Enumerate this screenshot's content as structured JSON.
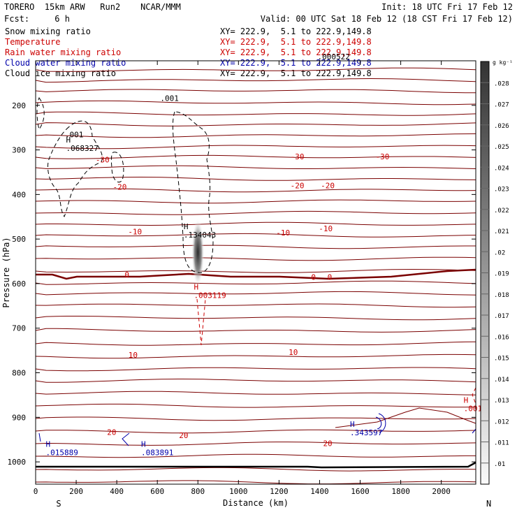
{
  "header": {
    "model": "TORERO  15km ARW   Run2    NCAR/MMM",
    "init": "Init: 18 UTC Fri 17 Feb 12",
    "fcst": "Fcst:     6 h",
    "valid": "Valid: 00 UTC Sat 18 Feb 12 (18 CST Fri 17 Feb 12)"
  },
  "fields": [
    {
      "name": "Snow mixing ratio",
      "xy": "",
      "color": "#000000"
    },
    {
      "name": "Temperature",
      "xy": "XY= 222.9,  5.1 to 222.9,149.8",
      "color": "#cc0000"
    },
    {
      "name": "Rain water mixing ratio",
      "xy": "XY= 222.9,  5.1 to 222.9,149.8",
      "color": "#cc0000"
    },
    {
      "name": "Cloud water mixing ratio",
      "xy": "XY= 222.9,  5.1 to 222.9,149.8",
      "color": "#0000aa"
    },
    {
      "name": "Cloud ice mixing ratio",
      "xy": "XY= 222.9,  5.1 to 222.9,149.8",
      "color": "#000000"
    }
  ],
  "snow_xy": "XY= 222.9,  5.1 to 222.9,149.8",
  "colors": {
    "temperature": "#7a0000",
    "temperature_label": "#cc0000",
    "rain": "#cc0000",
    "cloud_water": "#0000aa",
    "ice": "#000000"
  },
  "chart_data": {
    "type": "cross-section",
    "xlabel": "Distance (km)",
    "ylabel": "Pressure (hPa)",
    "xlim": [
      0,
      2170
    ],
    "ylim": [
      1050,
      100
    ],
    "xticks": [
      0,
      200,
      400,
      600,
      800,
      1000,
      1200,
      1400,
      1600,
      1800,
      2000
    ],
    "yticks": [
      200,
      300,
      400,
      500,
      600,
      700,
      800,
      900,
      1000
    ],
    "x_end_labels": {
      "left": "S",
      "right": "N"
    },
    "colorbar": {
      "unit": "g kg⁻¹",
      "ticks": [
        ".028",
        ".027",
        ".026",
        ".025",
        ".024",
        ".023",
        ".022",
        ".021",
        ".02",
        ".019",
        ".018",
        ".017",
        ".016",
        ".015",
        ".014",
        ".013",
        ".012",
        ".011",
        ".01"
      ]
    },
    "temperature_labels": [
      {
        "text": "-30",
        "x": 330,
        "p": 322
      },
      {
        "text": "-30",
        "x": 1290,
        "p": 315
      },
      {
        "text": "-30",
        "x": 1710,
        "p": 315
      },
      {
        "text": "-20",
        "x": 415,
        "p": 383
      },
      {
        "text": "-20",
        "x": 1290,
        "p": 380
      },
      {
        "text": "-20",
        "x": 1440,
        "p": 380
      },
      {
        "text": "-10",
        "x": 490,
        "p": 483
      },
      {
        "text": "-10",
        "x": 1220,
        "p": 486
      },
      {
        "text": "-10",
        "x": 1430,
        "p": 476
      },
      {
        "text": "0",
        "x": 450,
        "p": 580
      },
      {
        "text": "0",
        "x": 1370,
        "p": 585
      },
      {
        "text": "0",
        "x": 1450,
        "p": 585
      },
      {
        "text": "10",
        "x": 480,
        "p": 760
      },
      {
        "text": "10",
        "x": 1270,
        "p": 754
      },
      {
        "text": "20",
        "x": 375,
        "p": 933
      },
      {
        "text": "20",
        "x": 730,
        "p": 940
      },
      {
        "text": "20",
        "x": 1440,
        "p": 958
      }
    ],
    "ice_labels": [
      {
        "text": ".001",
        "x": 190,
        "p": 272
      },
      {
        "text": ".001",
        "x": 660,
        "p": 190
      }
    ],
    "maxima": [
      {
        "field": "cloud_ice",
        "label": "H",
        "value": ".068327",
        "x": 150,
        "p": 302
      },
      {
        "field": "cloud_ice",
        "label": "H",
        "value": ".134043",
        "x": 730,
        "p": 497
      },
      {
        "field": "cloud_ice",
        "value": ".000522",
        "x": 1390,
        "p": 97
      },
      {
        "field": "rain",
        "label": "H",
        "value": ".003119",
        "x": 780,
        "p": 632
      },
      {
        "field": "rain",
        "label": "H",
        "value": ".0012",
        "x": 2110,
        "p": 886
      },
      {
        "field": "cloud_water",
        "label": "H",
        "value": ".015889",
        "x": 50,
        "p": 985
      },
      {
        "field": "cloud_water",
        "label": "H",
        "value": ".083891",
        "x": 520,
        "p": 985
      },
      {
        "field": "cloud_water",
        "label": "H",
        "value": ".343597",
        "x": 1550,
        "p": 940
      }
    ],
    "snow_max": {
      "x": 800,
      "p": 530,
      "value_range": [
        0.01,
        0.028
      ]
    }
  }
}
